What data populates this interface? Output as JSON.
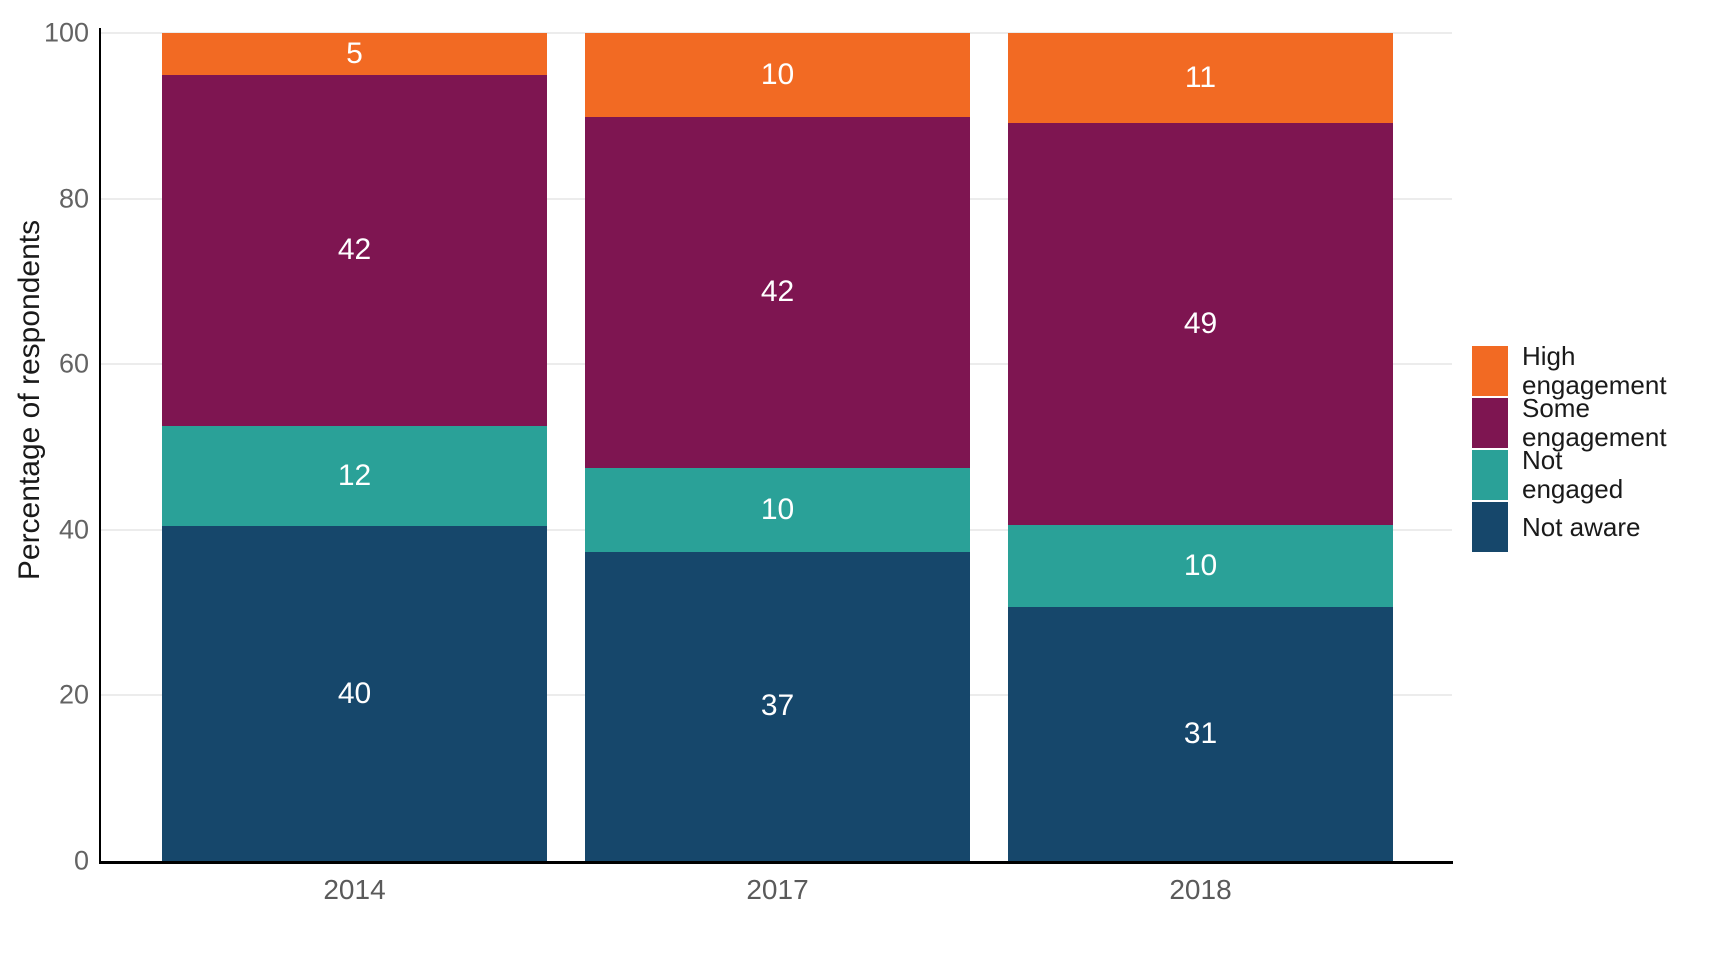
{
  "chart_data": {
    "type": "bar",
    "variant": "stacked",
    "title": "",
    "xlabel": "",
    "ylabel": "Percentage of respondents",
    "categories": [
      "2014",
      "2017",
      "2018"
    ],
    "series": [
      {
        "name": "High engagement",
        "color": "#F26A23",
        "values": [
          5,
          10,
          11
        ]
      },
      {
        "name": "Some engagement",
        "color": "#7E1551",
        "values": [
          42,
          42,
          49
        ]
      },
      {
        "name": "Not engaged",
        "color": "#2AA198",
        "values": [
          12,
          10,
          10
        ]
      },
      {
        "name": "Not aware",
        "color": "#16476B",
        "values": [
          40,
          37,
          31
        ]
      }
    ],
    "stack_order_bottom_to_top": [
      "Not aware",
      "Not engaged",
      "Some engagement",
      "High engagement"
    ],
    "bar_value_labels": true,
    "ylim": [
      0,
      100
    ],
    "yticks": [
      0,
      20,
      40,
      60,
      80,
      100
    ],
    "grid": "horizontal-light",
    "legend_position": "right"
  },
  "legend": {
    "items": [
      {
        "name": "High engagement",
        "lines": [
          "High",
          "engagement"
        ],
        "color": "#F26A23"
      },
      {
        "name": "Some engagement",
        "lines": [
          "Some",
          "engagement"
        ],
        "color": "#7E1551"
      },
      {
        "name": "Not engaged",
        "lines": [
          "Not",
          "engaged"
        ],
        "color": "#2AA198"
      },
      {
        "name": "Not aware",
        "lines": [
          "Not aware"
        ],
        "color": "#16476B"
      }
    ]
  },
  "style": {
    "grid_color": "#ececec",
    "axis_color": "#000000",
    "tick_label_color": "#636363",
    "value_label_color": "#ffffff",
    "background": "#ffffff"
  }
}
